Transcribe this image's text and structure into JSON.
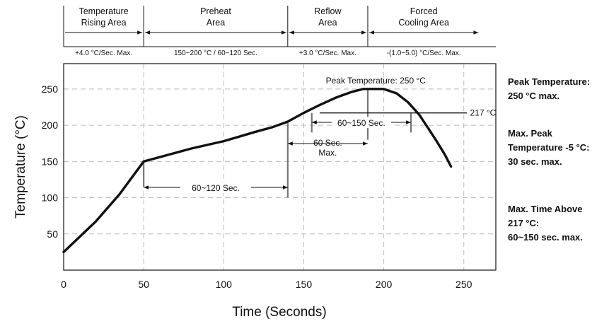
{
  "chart_data": {
    "type": "line",
    "xlabel": "Time (Seconds)",
    "ylabel": "Temperature (°C)",
    "xlim": [
      0,
      270
    ],
    "ylim": [
      0,
      285
    ],
    "x_ticks": [
      0,
      50,
      100,
      150,
      200,
      250
    ],
    "y_ticks": [
      50,
      100,
      150,
      200,
      250
    ],
    "grid": "dashed",
    "series": [
      {
        "points": [
          [
            0,
            25
          ],
          [
            20,
            67
          ],
          [
            35,
            105
          ],
          [
            50,
            150
          ],
          [
            55,
            153
          ],
          [
            80,
            168
          ],
          [
            100,
            178
          ],
          [
            120,
            191
          ],
          [
            130,
            197
          ],
          [
            140,
            205
          ],
          [
            150,
            217
          ],
          [
            160,
            228
          ],
          [
            170,
            238
          ],
          [
            180,
            246
          ],
          [
            187,
            250
          ],
          [
            200,
            250
          ],
          [
            208,
            244
          ],
          [
            215,
            232
          ],
          [
            222,
            215
          ],
          [
            228,
            195
          ],
          [
            233,
            178
          ],
          [
            238,
            160
          ],
          [
            242,
            143
          ]
        ]
      }
    ],
    "zones": [
      {
        "title": [
          "Temperature",
          "Rising Area"
        ],
        "rate": "+4.0 °C/Sec. Max.",
        "x_start": 0,
        "x_end": 50
      },
      {
        "title": [
          "Preheat",
          "Area"
        ],
        "rate": "150~200 °C / 60~120 Sec.",
        "x_start": 50,
        "x_end": 140
      },
      {
        "title": [
          "Reflow",
          "Area"
        ],
        "rate": "+3.0 °C/Sec. Max.",
        "x_start": 140,
        "x_end": 190
      },
      {
        "title": [
          "Forced",
          "Cooling Area"
        ],
        "rate": "-(1.0~5.0) °C/Sec. Max.",
        "x_start": 190,
        "x_end": 260
      }
    ],
    "annotations": {
      "peak": "Peak Temperature: 250 °C",
      "liquidus": "217 °C",
      "preheat_time": "60~120 Sec.",
      "peak_time": [
        "60 Sec.",
        "Max."
      ],
      "above_217_time": "60~150 Sec."
    }
  },
  "side_notes": [
    [
      "Peak Temperature:",
      "250 °C max."
    ],
    [
      "Max. Peak",
      "Temperature -5 °C:",
      "30 sec. max."
    ],
    [
      "Max. Time Above",
      "217 °C:",
      "60~150 sec. max."
    ]
  ]
}
